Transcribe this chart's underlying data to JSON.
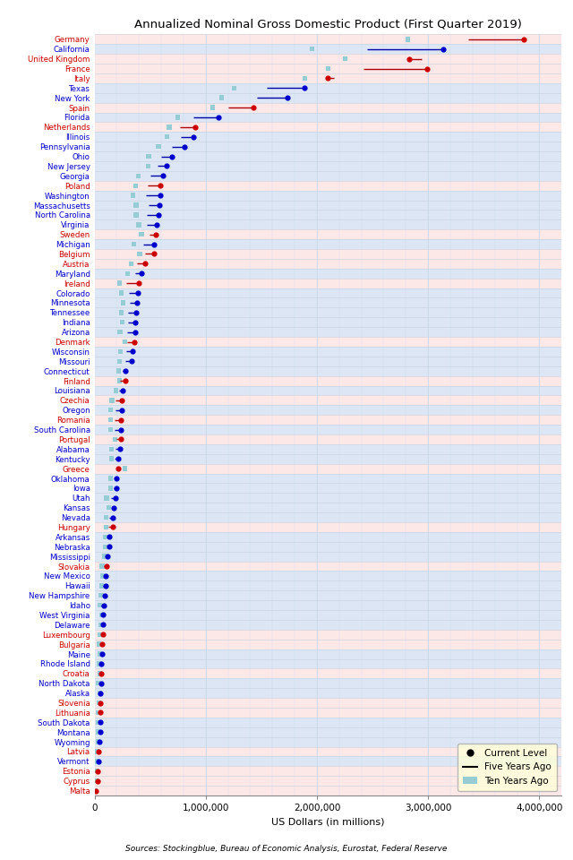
{
  "title": "Annualized Nominal Gross Domestic Product (First Quarter 2019)",
  "xlabel": "US Dollars (in millions)",
  "source": "Sources: Stockingblue, Bureau of Economic Analysis, Eurostat, Federal Reserve",
  "xlim": [
    0,
    4200000
  ],
  "xticks": [
    0,
    1000000,
    2000000,
    3000000,
    4000000
  ],
  "xticklabels": [
    "0",
    "1,000,000",
    "2,000,000",
    "3,000,000",
    "4,000,000"
  ],
  "entities": [
    {
      "name": "Germany",
      "color": "red",
      "current": 3861124,
      "five_yr": 3357561,
      "ten_yr": 2818200
    },
    {
      "name": "California",
      "color": "blue",
      "current": 3137000,
      "five_yr": 2448000,
      "ten_yr": 1958000
    },
    {
      "name": "United Kingdom",
      "color": "red",
      "current": 2829000,
      "five_yr": 2942000,
      "ten_yr": 2251000
    },
    {
      "name": "France",
      "color": "red",
      "current": 2987000,
      "five_yr": 2420000,
      "ten_yr": 2100000
    },
    {
      "name": "Italy",
      "color": "red",
      "current": 2096000,
      "five_yr": 2157000,
      "ten_yr": 1893000
    },
    {
      "name": "Texas",
      "color": "blue",
      "current": 1887000,
      "five_yr": 1549000,
      "ten_yr": 1254000
    },
    {
      "name": "New York",
      "color": "blue",
      "current": 1731000,
      "five_yr": 1462000,
      "ten_yr": 1145000
    },
    {
      "name": "Spain",
      "color": "red",
      "current": 1430000,
      "five_yr": 1200000,
      "ten_yr": 1063000
    },
    {
      "name": "Florida",
      "color": "blue",
      "current": 1111000,
      "five_yr": 888000,
      "ten_yr": 745000
    },
    {
      "name": "Netherlands",
      "color": "red",
      "current": 909000,
      "five_yr": 770000,
      "ten_yr": 672000
    },
    {
      "name": "Illinois",
      "color": "blue",
      "current": 886000,
      "five_yr": 776000,
      "ten_yr": 652000
    },
    {
      "name": "Pennsylvania",
      "color": "blue",
      "current": 807000,
      "five_yr": 692000,
      "ten_yr": 575000
    },
    {
      "name": "Ohio",
      "color": "blue",
      "current": 696000,
      "five_yr": 596000,
      "ten_yr": 487000
    },
    {
      "name": "New Jersey",
      "color": "blue",
      "current": 647000,
      "five_yr": 569000,
      "ten_yr": 481000
    },
    {
      "name": "Georgia",
      "color": "blue",
      "current": 612000,
      "five_yr": 501000,
      "ten_yr": 395000
    },
    {
      "name": "Poland",
      "color": "red",
      "current": 594000,
      "five_yr": 476000,
      "ten_yr": 371000
    },
    {
      "name": "Washington",
      "color": "blue",
      "current": 590000,
      "five_yr": 459000,
      "ten_yr": 347000
    },
    {
      "name": "Massachusetts",
      "color": "blue",
      "current": 587000,
      "five_yr": 483000,
      "ten_yr": 374000
    },
    {
      "name": "North Carolina",
      "color": "blue",
      "current": 575000,
      "five_yr": 473000,
      "ten_yr": 374000
    },
    {
      "name": "Virginia",
      "color": "blue",
      "current": 556000,
      "five_yr": 471000,
      "ten_yr": 397000
    },
    {
      "name": "Sweden",
      "color": "red",
      "current": 551000,
      "five_yr": 494000,
      "ten_yr": 422000
    },
    {
      "name": "Michigan",
      "color": "blue",
      "current": 533000,
      "five_yr": 437000,
      "ten_yr": 352000
    },
    {
      "name": "Belgium",
      "color": "red",
      "current": 531000,
      "five_yr": 456000,
      "ten_yr": 406000
    },
    {
      "name": "Austria",
      "color": "red",
      "current": 456000,
      "five_yr": 380000,
      "ten_yr": 330000
    },
    {
      "name": "Maryland",
      "color": "blue",
      "current": 421000,
      "five_yr": 363000,
      "ten_yr": 296000
    },
    {
      "name": "Ireland",
      "color": "red",
      "current": 399000,
      "five_yr": 282000,
      "ten_yr": 222000
    },
    {
      "name": "Colorado",
      "color": "blue",
      "current": 387000,
      "five_yr": 307000,
      "ten_yr": 239000
    },
    {
      "name": "Minnesota",
      "color": "blue",
      "current": 382000,
      "five_yr": 318000,
      "ten_yr": 255000
    },
    {
      "name": "Tennessee",
      "color": "blue",
      "current": 371000,
      "five_yr": 303000,
      "ten_yr": 238000
    },
    {
      "name": "Indiana",
      "color": "blue",
      "current": 369000,
      "five_yr": 303000,
      "ten_yr": 246000
    },
    {
      "name": "Arizona",
      "color": "blue",
      "current": 368000,
      "five_yr": 294000,
      "ten_yr": 228000
    },
    {
      "name": "Denmark",
      "color": "red",
      "current": 356000,
      "five_yr": 295000,
      "ten_yr": 270000
    },
    {
      "name": "Wisconsin",
      "color": "blue",
      "current": 344000,
      "five_yr": 284000,
      "ten_yr": 233000
    },
    {
      "name": "Missouri",
      "color": "blue",
      "current": 330000,
      "five_yr": 275000,
      "ten_yr": 223000
    },
    {
      "name": "Connecticut",
      "color": "blue",
      "current": 275000,
      "five_yr": 249000,
      "ten_yr": 219000
    },
    {
      "name": "Finland",
      "color": "red",
      "current": 274000,
      "five_yr": 231000,
      "ten_yr": 223000
    },
    {
      "name": "Louisiana",
      "color": "blue",
      "current": 256000,
      "five_yr": 219000,
      "ten_yr": 194000
    },
    {
      "name": "Czechia",
      "color": "red",
      "current": 246000,
      "five_yr": 186000,
      "ten_yr": 156000
    },
    {
      "name": "Oregon",
      "color": "blue",
      "current": 246000,
      "five_yr": 191000,
      "ten_yr": 147000
    },
    {
      "name": "Romania",
      "color": "red",
      "current": 240000,
      "five_yr": 177000,
      "ten_yr": 142000
    },
    {
      "name": "South Carolina",
      "color": "blue",
      "current": 233000,
      "five_yr": 184000,
      "ten_yr": 143000
    },
    {
      "name": "Portugal",
      "color": "red",
      "current": 237000,
      "five_yr": 198000,
      "ten_yr": 185000
    },
    {
      "name": "Alabama",
      "color": "blue",
      "current": 226000,
      "five_yr": 186000,
      "ten_yr": 154000
    },
    {
      "name": "Kentucky",
      "color": "blue",
      "current": 215000,
      "five_yr": 180000,
      "ten_yr": 152000
    },
    {
      "name": "Greece",
      "color": "red",
      "current": 214000,
      "five_yr": 229000,
      "ten_yr": 276000
    },
    {
      "name": "Oklahoma",
      "color": "blue",
      "current": 199000,
      "five_yr": 189000,
      "ten_yr": 147000
    },
    {
      "name": "Iowa",
      "color": "blue",
      "current": 196000,
      "five_yr": 172000,
      "ten_yr": 143000
    },
    {
      "name": "Utah",
      "color": "blue",
      "current": 187000,
      "five_yr": 145000,
      "ten_yr": 108000
    },
    {
      "name": "Kansas",
      "color": "blue",
      "current": 176000,
      "five_yr": 155000,
      "ten_yr": 127000
    },
    {
      "name": "Nevada",
      "color": "blue",
      "current": 167000,
      "five_yr": 132000,
      "ten_yr": 107000
    },
    {
      "name": "Hungary",
      "color": "red",
      "current": 163000,
      "five_yr": 124000,
      "ten_yr": 102000
    },
    {
      "name": "Arkansas",
      "color": "blue",
      "current": 133000,
      "five_yr": 113000,
      "ten_yr": 95000
    },
    {
      "name": "Nebraska",
      "color": "blue",
      "current": 131000,
      "five_yr": 114000,
      "ten_yr": 93000
    },
    {
      "name": "Mississippi",
      "color": "blue",
      "current": 116000,
      "five_yr": 102000,
      "ten_yr": 86000
    },
    {
      "name": "Slovakia",
      "color": "red",
      "current": 105000,
      "five_yr": 84000,
      "ten_yr": 67000
    },
    {
      "name": "New Mexico",
      "color": "blue",
      "current": 99000,
      "five_yr": 88000,
      "ten_yr": 74000
    },
    {
      "name": "Hawaii",
      "color": "blue",
      "current": 98000,
      "five_yr": 79000,
      "ten_yr": 63000
    },
    {
      "name": "New Hampshire",
      "color": "blue",
      "current": 88000,
      "five_yr": 73000,
      "ten_yr": 59000
    },
    {
      "name": "Idaho",
      "color": "blue",
      "current": 83000,
      "five_yr": 63000,
      "ten_yr": 48000
    },
    {
      "name": "West Virginia",
      "color": "blue",
      "current": 77000,
      "five_yr": 72000,
      "ten_yr": 61000
    },
    {
      "name": "Delaware",
      "color": "blue",
      "current": 75000,
      "five_yr": 64000,
      "ten_yr": 54000
    },
    {
      "name": "Luxembourg",
      "color": "red",
      "current": 72000,
      "five_yr": 57000,
      "ten_yr": 47000
    },
    {
      "name": "Bulgaria",
      "color": "red",
      "current": 67000,
      "five_yr": 52000,
      "ten_yr": 41000
    },
    {
      "name": "Maine",
      "color": "blue",
      "current": 66000,
      "five_yr": 56000,
      "ten_yr": 47000
    },
    {
      "name": "Rhode Island",
      "color": "blue",
      "current": 61000,
      "five_yr": 52000,
      "ten_yr": 44000
    },
    {
      "name": "Croatia",
      "color": "red",
      "current": 60000,
      "five_yr": 50000,
      "ten_yr": 48000
    },
    {
      "name": "North Dakota",
      "color": "blue",
      "current": 58000,
      "five_yr": 53000,
      "ten_yr": 34000
    },
    {
      "name": "Alaska",
      "color": "blue",
      "current": 55000,
      "five_yr": 51000,
      "ten_yr": 45000
    },
    {
      "name": "Slovenia",
      "color": "red",
      "current": 54000,
      "five_yr": 44000,
      "ten_yr": 39000
    },
    {
      "name": "Lithuania",
      "color": "red",
      "current": 53000,
      "five_yr": 42000,
      "ten_yr": 31000
    },
    {
      "name": "South Dakota",
      "color": "blue",
      "current": 53000,
      "five_yr": 45000,
      "ten_yr": 36000
    },
    {
      "name": "Montana",
      "color": "blue",
      "current": 51000,
      "five_yr": 43000,
      "ten_yr": 34000
    },
    {
      "name": "Wyoming",
      "color": "blue",
      "current": 40000,
      "five_yr": 40000,
      "ten_yr": 33000
    },
    {
      "name": "Latvia",
      "color": "red",
      "current": 34000,
      "five_yr": 28000,
      "ten_yr": 22000
    },
    {
      "name": "Vermont",
      "color": "blue",
      "current": 33000,
      "five_yr": 28000,
      "ten_yr": 24000
    },
    {
      "name": "Estonia",
      "color": "red",
      "current": 30000,
      "five_yr": 23000,
      "ten_yr": 18000
    },
    {
      "name": "Cyprus",
      "color": "red",
      "current": 24000,
      "five_yr": 20000,
      "ten_yr": 18000
    },
    {
      "name": "Malta",
      "color": "red",
      "current": 15000,
      "five_yr": 10000,
      "ten_yr": 7000
    }
  ],
  "bg_color_eu": "#fde8e8",
  "bg_color_us": "#dce6f5",
  "grid_color_v": "#c8d8e8",
  "grid_color_h": "#c8d0dc",
  "ten_yr_color": "#96ccd4",
  "dot_color_blue": "#0000cc",
  "dot_color_red": "#cc0000",
  "line_color_blue": "#0000aa",
  "line_color_red": "#aa0000"
}
